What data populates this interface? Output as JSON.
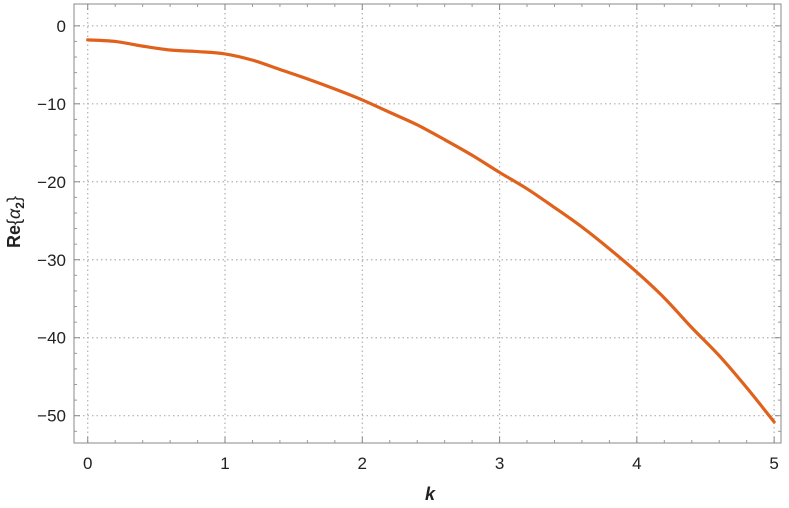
{
  "chart_data": {
    "type": "line",
    "title": "",
    "xlabel": "k",
    "ylabel": {
      "prefix": "Re",
      "open": "{",
      "symbol": "α",
      "subscript": "2",
      "close": "}"
    },
    "xlim": [
      -0.1,
      5.05
    ],
    "ylim": [
      -53.5,
      2.8
    ],
    "x_ticks": [
      0,
      1,
      2,
      3,
      4,
      5
    ],
    "x_tick_labels": [
      "0",
      "1",
      "2",
      "3",
      "4",
      "5"
    ],
    "y_ticks": [
      0,
      -10,
      -20,
      -30,
      -40,
      -50
    ],
    "y_tick_labels": [
      "0",
      "−10",
      "−20",
      "−30",
      "−40",
      "−50"
    ],
    "grid": true,
    "grid_style": "dotted",
    "series": [
      {
        "color": "#e0611b",
        "x": [
          0,
          0.2,
          0.4,
          0.6,
          0.8,
          1.0,
          1.2,
          1.4,
          1.6,
          1.8,
          2.0,
          2.2,
          2.4,
          2.6,
          2.8,
          3.0,
          3.2,
          3.4,
          3.6,
          3.8,
          4.0,
          4.2,
          4.4,
          4.6,
          4.8,
          5.0
        ],
        "y": [
          -1.8,
          -2.0,
          -2.6,
          -3.1,
          -3.3,
          -3.6,
          -4.4,
          -5.6,
          -6.8,
          -8.1,
          -9.5,
          -11.1,
          -12.7,
          -14.6,
          -16.6,
          -18.8,
          -20.9,
          -23.3,
          -25.8,
          -28.6,
          -31.6,
          -34.9,
          -38.7,
          -42.3,
          -46.4,
          -50.8
        ]
      }
    ]
  }
}
